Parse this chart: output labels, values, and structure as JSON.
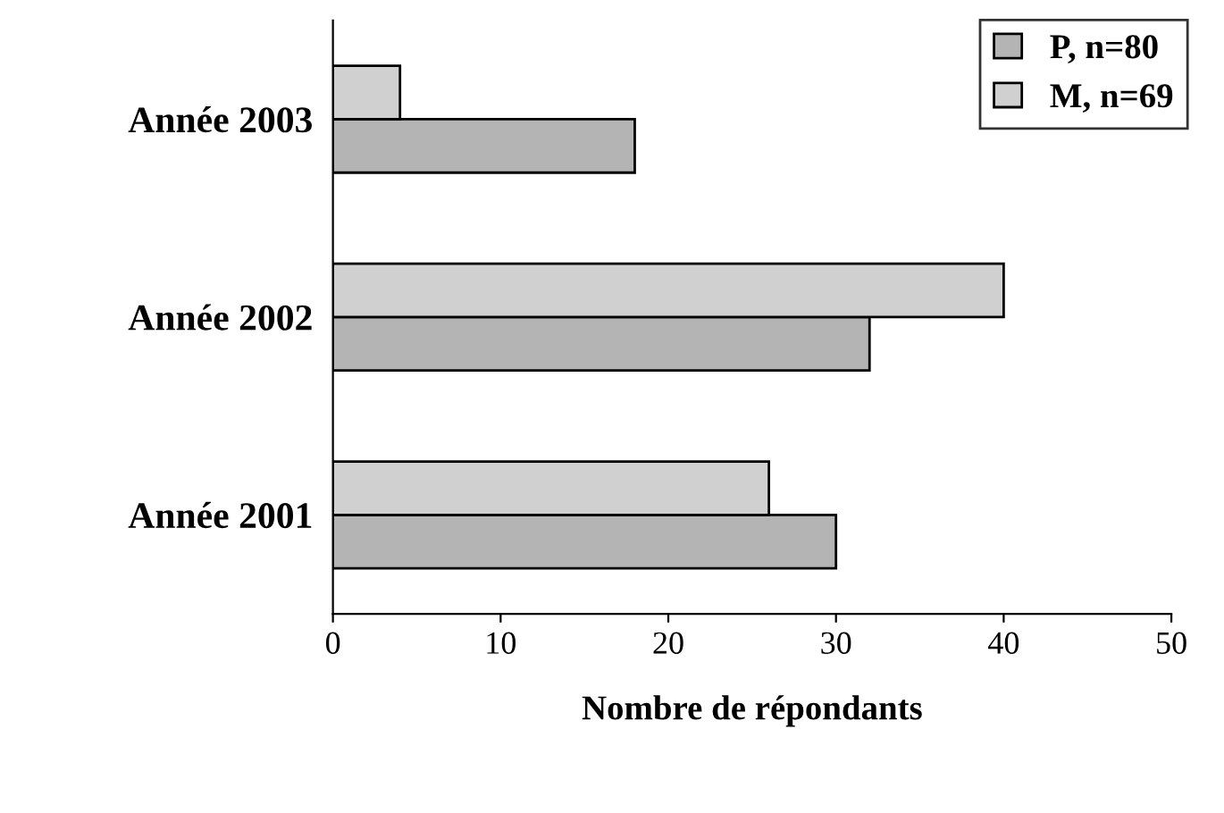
{
  "chart_data": {
    "type": "bar",
    "orientation": "horizontal",
    "xlabel": "Nombre de répondants",
    "categories": [
      "Année 2003",
      "Année 2002",
      "Année 2001"
    ],
    "series": [
      {
        "name": "P, n=80",
        "color": "#b4b4b4",
        "values": [
          18,
          32,
          30
        ]
      },
      {
        "name": "M, n=69",
        "color": "#d0d0d0",
        "values": [
          4,
          40,
          26
        ]
      }
    ],
    "xlim": [
      0,
      50
    ],
    "xticks": [
      0,
      10,
      20,
      30,
      40,
      50
    ],
    "grid": false,
    "legend": "top right"
  }
}
